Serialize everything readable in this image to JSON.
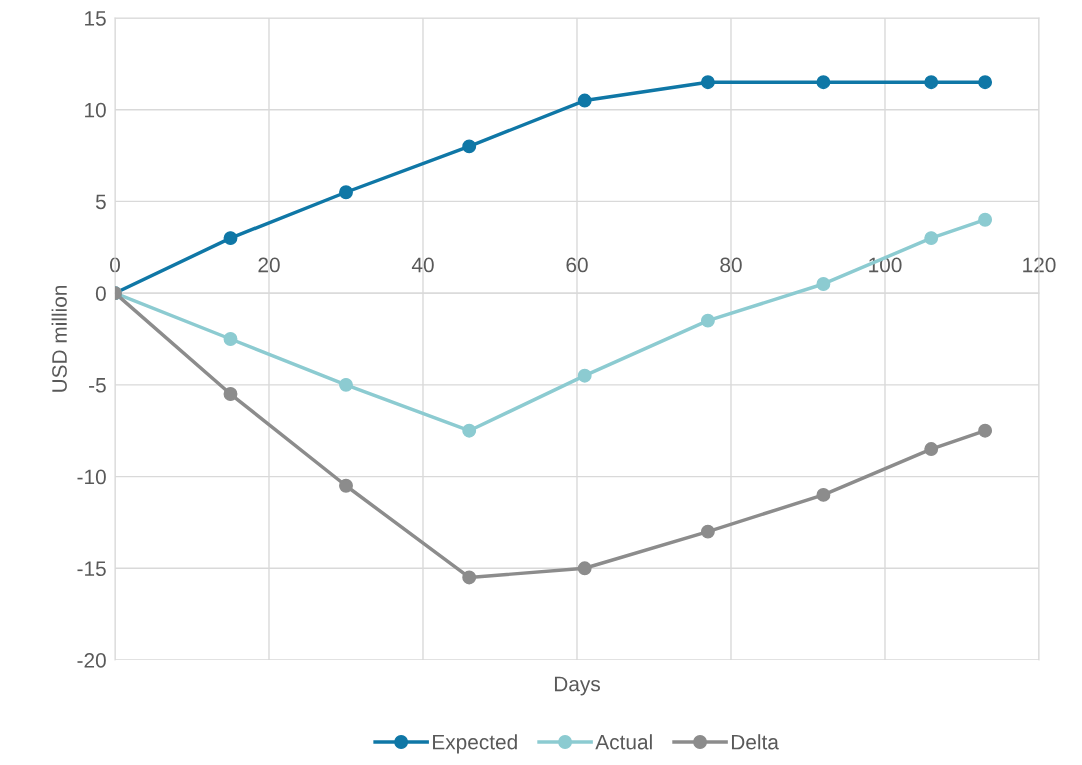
{
  "chart_data": {
    "type": "line",
    "xlabel": "Days",
    "ylabel": "USD million",
    "x": [
      0,
      15,
      30,
      46,
      61,
      77,
      92,
      106,
      113
    ],
    "series": [
      {
        "name": "Expected",
        "color": "#0f77a6",
        "values": [
          0,
          3,
          5.5,
          8,
          10.5,
          11.5,
          11.5,
          11.5,
          11.5
        ]
      },
      {
        "name": "Actual",
        "color": "#8ccbd1",
        "values": [
          0,
          -2.5,
          -5,
          -7.5,
          -4.5,
          -1.5,
          0.5,
          3,
          4
        ]
      },
      {
        "name": "Delta",
        "color": "#8c8c8c",
        "values": [
          0,
          -5.5,
          -10.5,
          -15.5,
          -15,
          -13,
          -11,
          -8.5,
          -7.5
        ]
      }
    ],
    "xlim": [
      0,
      120
    ],
    "xticks": [
      0,
      20,
      40,
      60,
      80,
      100,
      120
    ],
    "ylim": [
      -20,
      15
    ],
    "yticks": [
      -20,
      -15,
      -10,
      -5,
      0,
      5,
      10,
      15
    ],
    "grid": true,
    "legend": "bottom",
    "marker": "circle",
    "line_style": "solid"
  }
}
